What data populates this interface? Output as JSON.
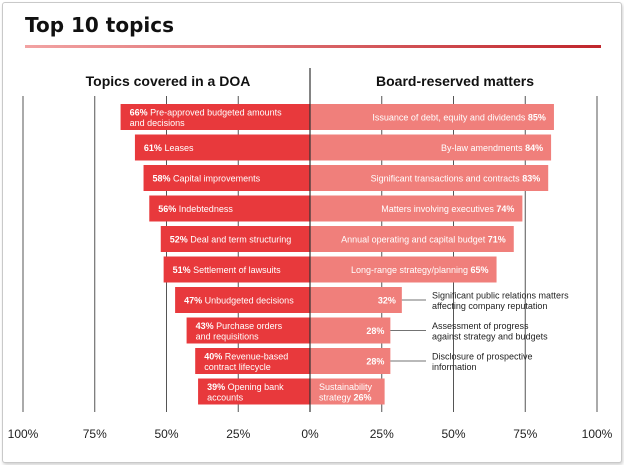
{
  "title": "Top 10 topics",
  "left_heading": "Topics covered in a DOA",
  "right_heading": "Board-reserved matters",
  "colors": {
    "left_bar": "#e8393c",
    "right_bar": "#f07f7b",
    "axis": "#333333",
    "grid": "#555555",
    "rule_start": "#f2a3a3",
    "rule_end": "#c0262c"
  },
  "chart_data": {
    "type": "bar",
    "orientation": "horizontal-diverging",
    "xlim": [
      -100,
      100
    ],
    "x_tick_labels": [
      "100%",
      "75%",
      "50%",
      "25%",
      "0%",
      "25%",
      "50%",
      "75%",
      "100%"
    ],
    "series": [
      {
        "name": "Topics covered in a DOA",
        "values": [
          66,
          61,
          58,
          56,
          52,
          51,
          47,
          43,
          40,
          39
        ],
        "labels": [
          [
            "Pre-approved budgeted amounts",
            "and decisions"
          ],
          [
            "Leases"
          ],
          [
            "Capital improvements"
          ],
          [
            "Indebtedness"
          ],
          [
            "Deal and term structuring"
          ],
          [
            "Settlement of lawsuits"
          ],
          [
            "Unbudgeted decisions"
          ],
          [
            "Purchase orders",
            "and requisitions"
          ],
          [
            "Revenue-based",
            "contract lifecycle"
          ],
          [
            "Opening bank",
            "accounts"
          ]
        ]
      },
      {
        "name": "Board-reserved matters",
        "values": [
          85,
          84,
          83,
          74,
          71,
          65,
          32,
          28,
          28,
          26
        ],
        "labels": [
          [
            "Issuance of debt, equity and dividends"
          ],
          [
            "By-law amendments"
          ],
          [
            "Significant transactions and contracts"
          ],
          [
            "Matters involving executives"
          ],
          [
            "Annual operating and capital budget"
          ],
          [
            "Long-range strategy/planning"
          ],
          [
            "Significant public relations matters",
            "affecting company reputation"
          ],
          [
            "Assessment of progress",
            "against strategy and budgets"
          ],
          [
            "Disclosure of prospective",
            "information"
          ],
          [
            "Sustainability",
            "strategy"
          ]
        ],
        "label_outside": [
          false,
          false,
          false,
          false,
          false,
          false,
          true,
          true,
          true,
          false
        ]
      }
    ]
  }
}
